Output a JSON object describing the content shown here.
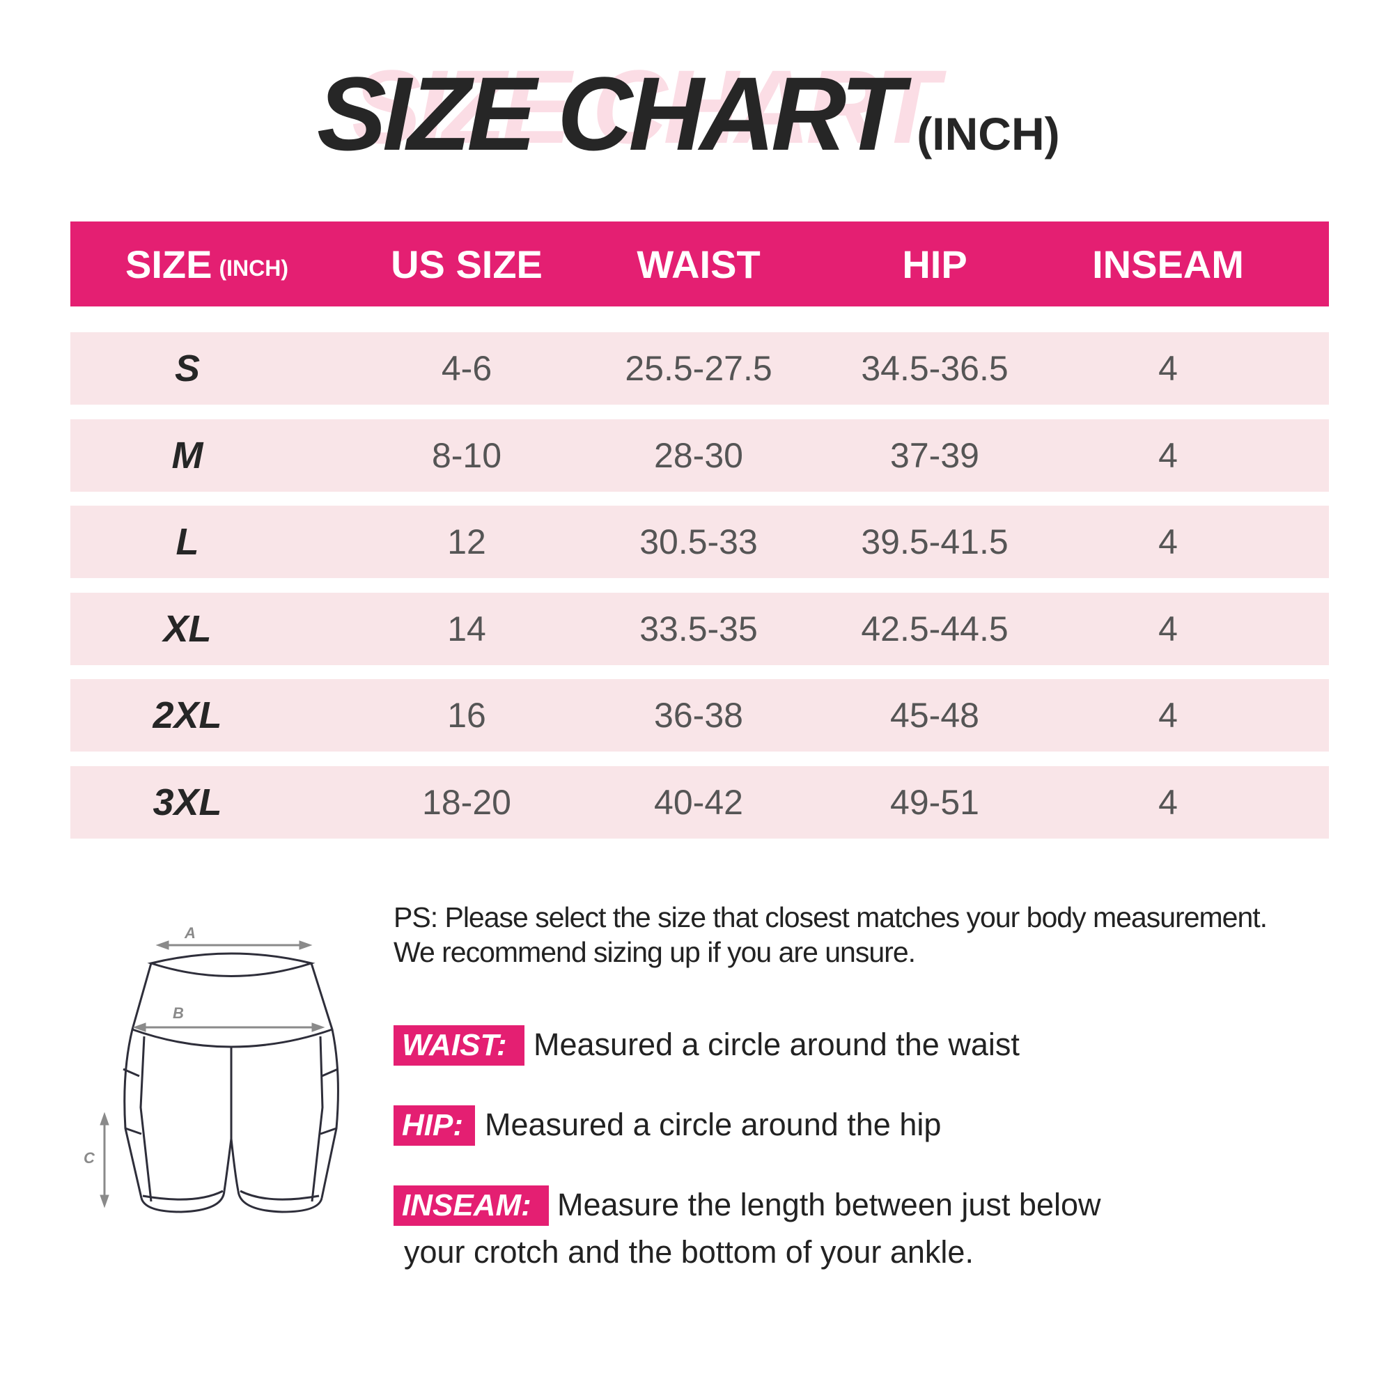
{
  "title": {
    "main": "SIZE CHART",
    "unit": "(INCH)"
  },
  "colors": {
    "accent": "#e41f72",
    "row_bg": "#f9e5e8",
    "text_dark": "#262626"
  },
  "table": {
    "headers": [
      {
        "label": "SIZE",
        "sub": "(INCH)"
      },
      {
        "label": "US SIZE"
      },
      {
        "label": "WAIST"
      },
      {
        "label": "HIP"
      },
      {
        "label": "INSEAM"
      }
    ],
    "rows": [
      [
        "S",
        "4-6",
        "25.5-27.5",
        "34.5-36.5",
        "4"
      ],
      [
        "M",
        "8-10",
        "28-30",
        "37-39",
        "4"
      ],
      [
        "L",
        "12",
        "30.5-33",
        "39.5-41.5",
        "4"
      ],
      [
        "XL",
        "14",
        "33.5-35",
        "42.5-44.5",
        "4"
      ],
      [
        "2XL",
        "16",
        "36-38",
        "45-48",
        "4"
      ],
      [
        "3XL",
        "18-20",
        "40-42",
        "49-51",
        "4"
      ]
    ]
  },
  "notes": {
    "ps_line1": "PS: Please select the size that closest matches your body measurement.",
    "ps_line2": "We recommend sizing up if you are unsure."
  },
  "measurements": [
    {
      "tag": "WAIST:",
      "text": "Measured a circle around the waist"
    },
    {
      "tag": "HIP:",
      "text": "Measured a circle around the hip"
    },
    {
      "tag": "INSEAM:",
      "text": "Measure the length between just below",
      "text2": "your crotch and the bottom of your ankle."
    }
  ],
  "diagram": {
    "labels": {
      "a": "A",
      "b": "B",
      "c": "C"
    }
  }
}
